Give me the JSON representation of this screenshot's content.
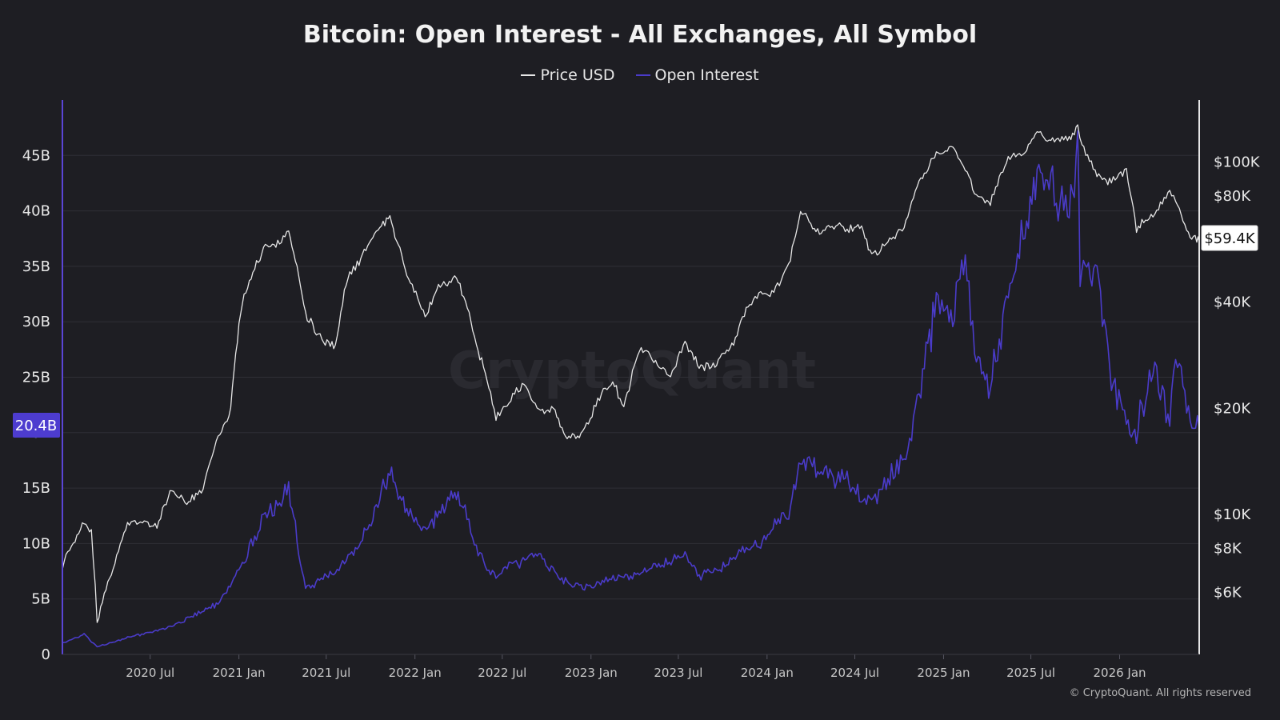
{
  "chart_data": {
    "type": "line",
    "title": "Bitcoin: Open Interest - All Exchanges, All Symbol",
    "legend": [
      "Price USD",
      "Open Interest"
    ],
    "legend_position": "top-center",
    "watermark": "CryptoQuant",
    "copyright": "© CryptoQuant. All rights reserved",
    "grid": true,
    "x_range": [
      "2020-01-01",
      "2026-06-15"
    ],
    "x_ticks": [
      "2020 Jul",
      "2021 Jan",
      "2021 Jul",
      "2022 Jan",
      "2022 Jul",
      "2023 Jan",
      "2023 Jul",
      "2024 Jan",
      "2024 Jul",
      "2025 Jan",
      "2025 Jul",
      "2026 Jan"
    ],
    "y_left": {
      "range": [
        0,
        50
      ],
      "unit": "B",
      "ticks": [
        "0",
        "5B",
        "10B",
        "15B",
        "20B",
        "25B",
        "30B",
        "35B",
        "40B",
        "45B"
      ],
      "current_label": "20.4B",
      "current_value": 20.4
    },
    "y_right": {
      "scale": "log",
      "range": [
        4000,
        150000
      ],
      "ticks": [
        "$6K",
        "$8K",
        "$10K",
        "$20K",
        "$40K",
        "$80K",
        "$100K"
      ],
      "tick_values": [
        6000,
        8000,
        10000,
        20000,
        40000,
        80000,
        100000
      ],
      "current_label": "$59.4K",
      "current_value": 59400
    },
    "colors": {
      "price": "#e6e6e6",
      "open_interest": "#4a3bc9",
      "background": "#1e1e23",
      "grid": "#2f2f36",
      "left_axis": "#5a45d6",
      "current_oi_badge": "#4d3ccf"
    },
    "series": [
      {
        "name": "Price USD",
        "axis": "right",
        "x": [
          "2020-01-01",
          "2020-02-15",
          "2020-03-01",
          "2020-03-13",
          "2020-04-15",
          "2020-05-15",
          "2020-06-15",
          "2020-07-15",
          "2020-08-15",
          "2020-09-15",
          "2020-10-15",
          "2020-11-15",
          "2020-12-15",
          "2021-01-08",
          "2021-02-21",
          "2021-03-15",
          "2021-04-14",
          "2021-05-19",
          "2021-06-22",
          "2021-07-20",
          "2021-08-15",
          "2021-09-07",
          "2021-10-20",
          "2021-11-10",
          "2021-12-15",
          "2022-01-22",
          "2022-02-15",
          "2022-03-28",
          "2022-05-12",
          "2022-06-18",
          "2022-07-15",
          "2022-08-15",
          "2022-09-15",
          "2022-10-15",
          "2022-11-09",
          "2022-12-15",
          "2023-01-15",
          "2023-02-15",
          "2023-03-10",
          "2023-04-15",
          "2023-05-15",
          "2023-06-15",
          "2023-07-15",
          "2023-08-17",
          "2023-09-15",
          "2023-10-20",
          "2023-11-15",
          "2023-12-15",
          "2024-01-15",
          "2024-02-15",
          "2024-03-14",
          "2024-04-15",
          "2024-05-15",
          "2024-06-15",
          "2024-07-15",
          "2024-08-05",
          "2024-09-15",
          "2024-10-15",
          "2024-11-15",
          "2024-12-17",
          "2025-01-20",
          "2025-02-15",
          "2025-03-10",
          "2025-04-08",
          "2025-05-15",
          "2025-06-15",
          "2025-07-14",
          "2025-08-15",
          "2025-09-15",
          "2025-10-06",
          "2025-10-15",
          "2025-11-15",
          "2025-12-15",
          "2026-01-15",
          "2026-02-05",
          "2026-02-20",
          "2026-03-15",
          "2026-04-15",
          "2026-05-01",
          "2026-05-20",
          "2026-06-10",
          "2026-06-15"
        ],
        "values": [
          7200,
          9500,
          8800,
          4900,
          7000,
          9300,
          9400,
          9200,
          11800,
          10800,
          11500,
          16000,
          19500,
          40000,
          57000,
          58000,
          63500,
          37000,
          31000,
          30000,
          47000,
          52000,
          66000,
          68700,
          48000,
          36000,
          44000,
          47500,
          29000,
          19000,
          21000,
          23500,
          19500,
          20000,
          16500,
          16800,
          21000,
          24000,
          20000,
          30000,
          27000,
          25000,
          30500,
          26000,
          26500,
          30000,
          37000,
          42000,
          42500,
          51000,
          73000,
          63000,
          66000,
          65000,
          65000,
          54000,
          60000,
          67000,
          90000,
          106000,
          109000,
          96000,
          80000,
          76000,
          103000,
          105000,
          121000,
          116000,
          115000,
          126000,
          111000,
          91000,
          88000,
          95000,
          64000,
          68000,
          72000,
          82000,
          76000,
          63000,
          60000,
          59400
        ]
      },
      {
        "name": "Open Interest",
        "axis": "left",
        "x": [
          "2020-01-01",
          "2020-02-15",
          "2020-03-13",
          "2020-05-15",
          "2020-08-15",
          "2020-11-15",
          "2021-01-08",
          "2021-02-21",
          "2021-03-15",
          "2021-04-14",
          "2021-05-19",
          "2021-07-20",
          "2021-09-07",
          "2021-10-20",
          "2021-11-10",
          "2021-12-15",
          "2022-01-22",
          "2022-03-28",
          "2022-04-15",
          "2022-05-12",
          "2022-06-18",
          "2022-07-15",
          "2022-09-15",
          "2022-11-09",
          "2022-12-15",
          "2023-03-10",
          "2023-04-15",
          "2023-07-15",
          "2023-08-17",
          "2023-10-20",
          "2023-12-15",
          "2024-02-15",
          "2024-03-14",
          "2024-04-15",
          "2024-06-15",
          "2024-08-05",
          "2024-10-15",
          "2024-11-15",
          "2024-12-17",
          "2025-01-20",
          "2025-02-15",
          "2025-03-10",
          "2025-04-08",
          "2025-05-15",
          "2025-06-15",
          "2025-07-14",
          "2025-08-15",
          "2025-09-15",
          "2025-10-06",
          "2025-10-11",
          "2025-11-15",
          "2025-12-15",
          "2026-01-15",
          "2026-02-05",
          "2026-03-15",
          "2026-04-15",
          "2026-05-01",
          "2026-05-20",
          "2026-06-15"
        ],
        "values": [
          1.0,
          1.8,
          0.7,
          1.5,
          2.5,
          4.5,
          8.0,
          12.5,
          13.0,
          15.0,
          6.0,
          7.5,
          10.0,
          14.0,
          16.8,
          13.0,
          11.0,
          14.5,
          13.0,
          9.0,
          7.0,
          8.0,
          9.0,
          6.5,
          6.0,
          7.0,
          7.5,
          9.0,
          7.0,
          8.5,
          10.0,
          13.0,
          18.0,
          16.5,
          15.5,
          13.5,
          18.0,
          24.0,
          32.0,
          31.0,
          35.0,
          27.0,
          24.0,
          33.0,
          38.0,
          43.0,
          42.5,
          40.0,
          46.0,
          34.0,
          34.0,
          25.0,
          21.0,
          20.5,
          26.0,
          21.0,
          27.0,
          22.0,
          20.4
        ]
      }
    ]
  }
}
